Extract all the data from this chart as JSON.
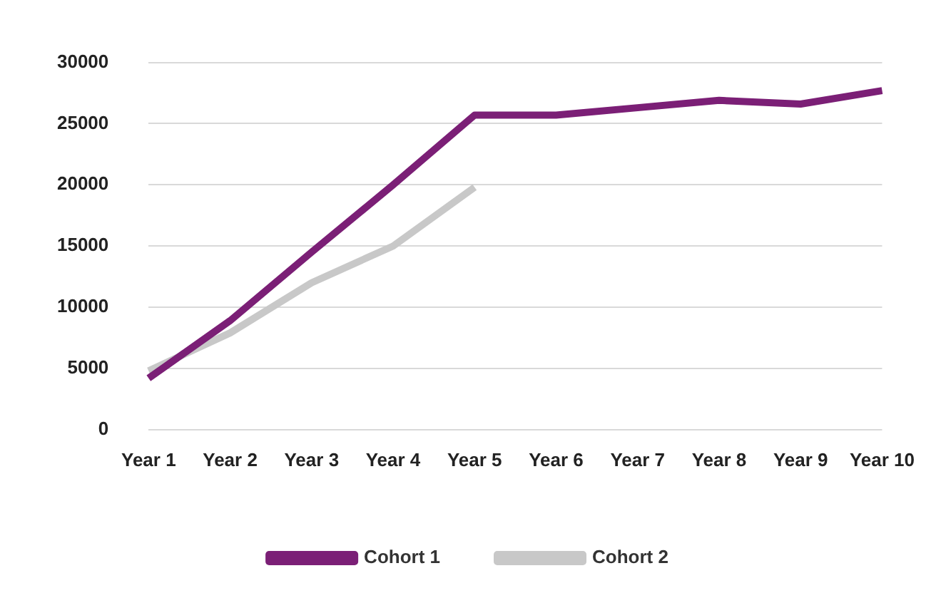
{
  "chart_data": {
    "type": "line",
    "categories": [
      "Year 1",
      "Year 2",
      "Year 3",
      "Year 4",
      "Year 5",
      "Year 6",
      "Year 7",
      "Year 8",
      "Year 9",
      "Year 10"
    ],
    "series": [
      {
        "name": "Cohort 1",
        "color": "#7b1f76",
        "values": [
          4200,
          8900,
          14500,
          20000,
          25700,
          25700,
          26300,
          26900,
          26600,
          27700
        ]
      },
      {
        "name": "Cohort 2",
        "color": "#c8c8c8",
        "values": [
          4800,
          7900,
          12000,
          15000,
          19800,
          null,
          null,
          null,
          null,
          null
        ]
      }
    ],
    "ylim": [
      0,
      30000
    ],
    "yticks": [
      0,
      5000,
      10000,
      15000,
      20000,
      25000,
      30000
    ],
    "grid": "y",
    "legend": "bottom",
    "marker": "none",
    "line_style": "solid"
  }
}
